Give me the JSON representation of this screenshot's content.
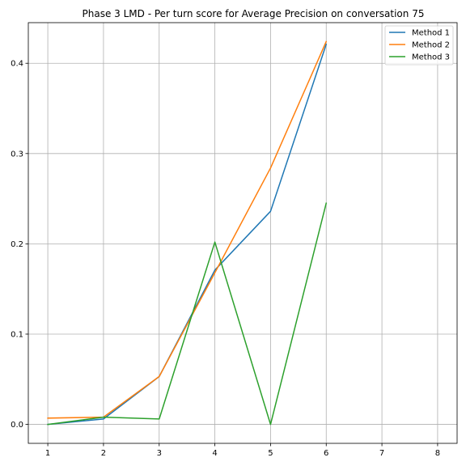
{
  "chart_data": {
    "type": "line",
    "title": "Phase 3 LMD - Per turn score for Average Precision on conversation 75",
    "xlabel": "",
    "ylabel": "",
    "x": [
      1,
      2,
      3,
      4,
      5,
      6
    ],
    "x_ticks": [
      "1",
      "2",
      "3",
      "4",
      "5",
      "6",
      "7",
      "8"
    ],
    "y_ticks": [
      "0.0",
      "0.1",
      "0.2",
      "0.3",
      "0.4"
    ],
    "xlim": [
      0.65,
      8.35
    ],
    "ylim": [
      -0.021,
      0.445
    ],
    "grid": true,
    "legend_position": "top-right",
    "series": [
      {
        "name": "Method 1",
        "color": "#1f77b4",
        "values": [
          0.0,
          0.006,
          0.053,
          0.171,
          0.236,
          0.421
        ]
      },
      {
        "name": "Method 2",
        "color": "#ff7f0e",
        "values": [
          0.007,
          0.008,
          0.053,
          0.168,
          0.284,
          0.424
        ]
      },
      {
        "name": "Method 3",
        "color": "#2ca02c",
        "values": [
          0.0,
          0.008,
          0.006,
          0.202,
          0.0,
          0.245
        ]
      }
    ]
  }
}
